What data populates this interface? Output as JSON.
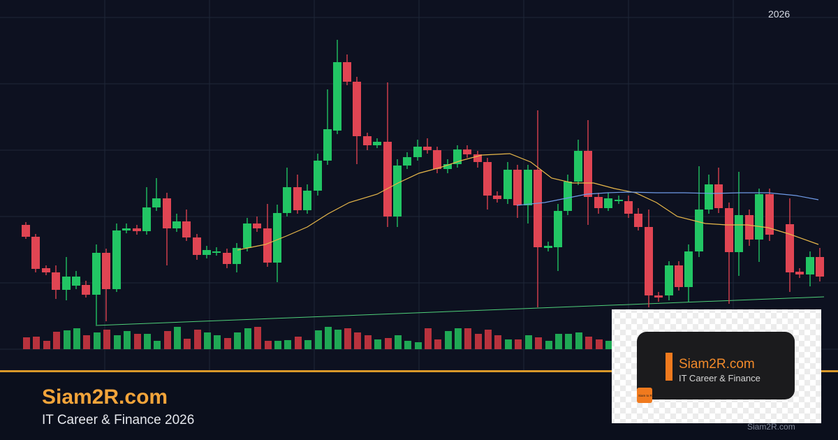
{
  "year_label": "2026",
  "brand": {
    "name": "Siam2R.com",
    "tagline": "IT Career & Finance 2026"
  },
  "card": {
    "name": "Siam2R.com",
    "tagline": "IT Career & Finance",
    "icon_text": "Siam to Rich"
  },
  "footer": "Siam2R.com"
}
